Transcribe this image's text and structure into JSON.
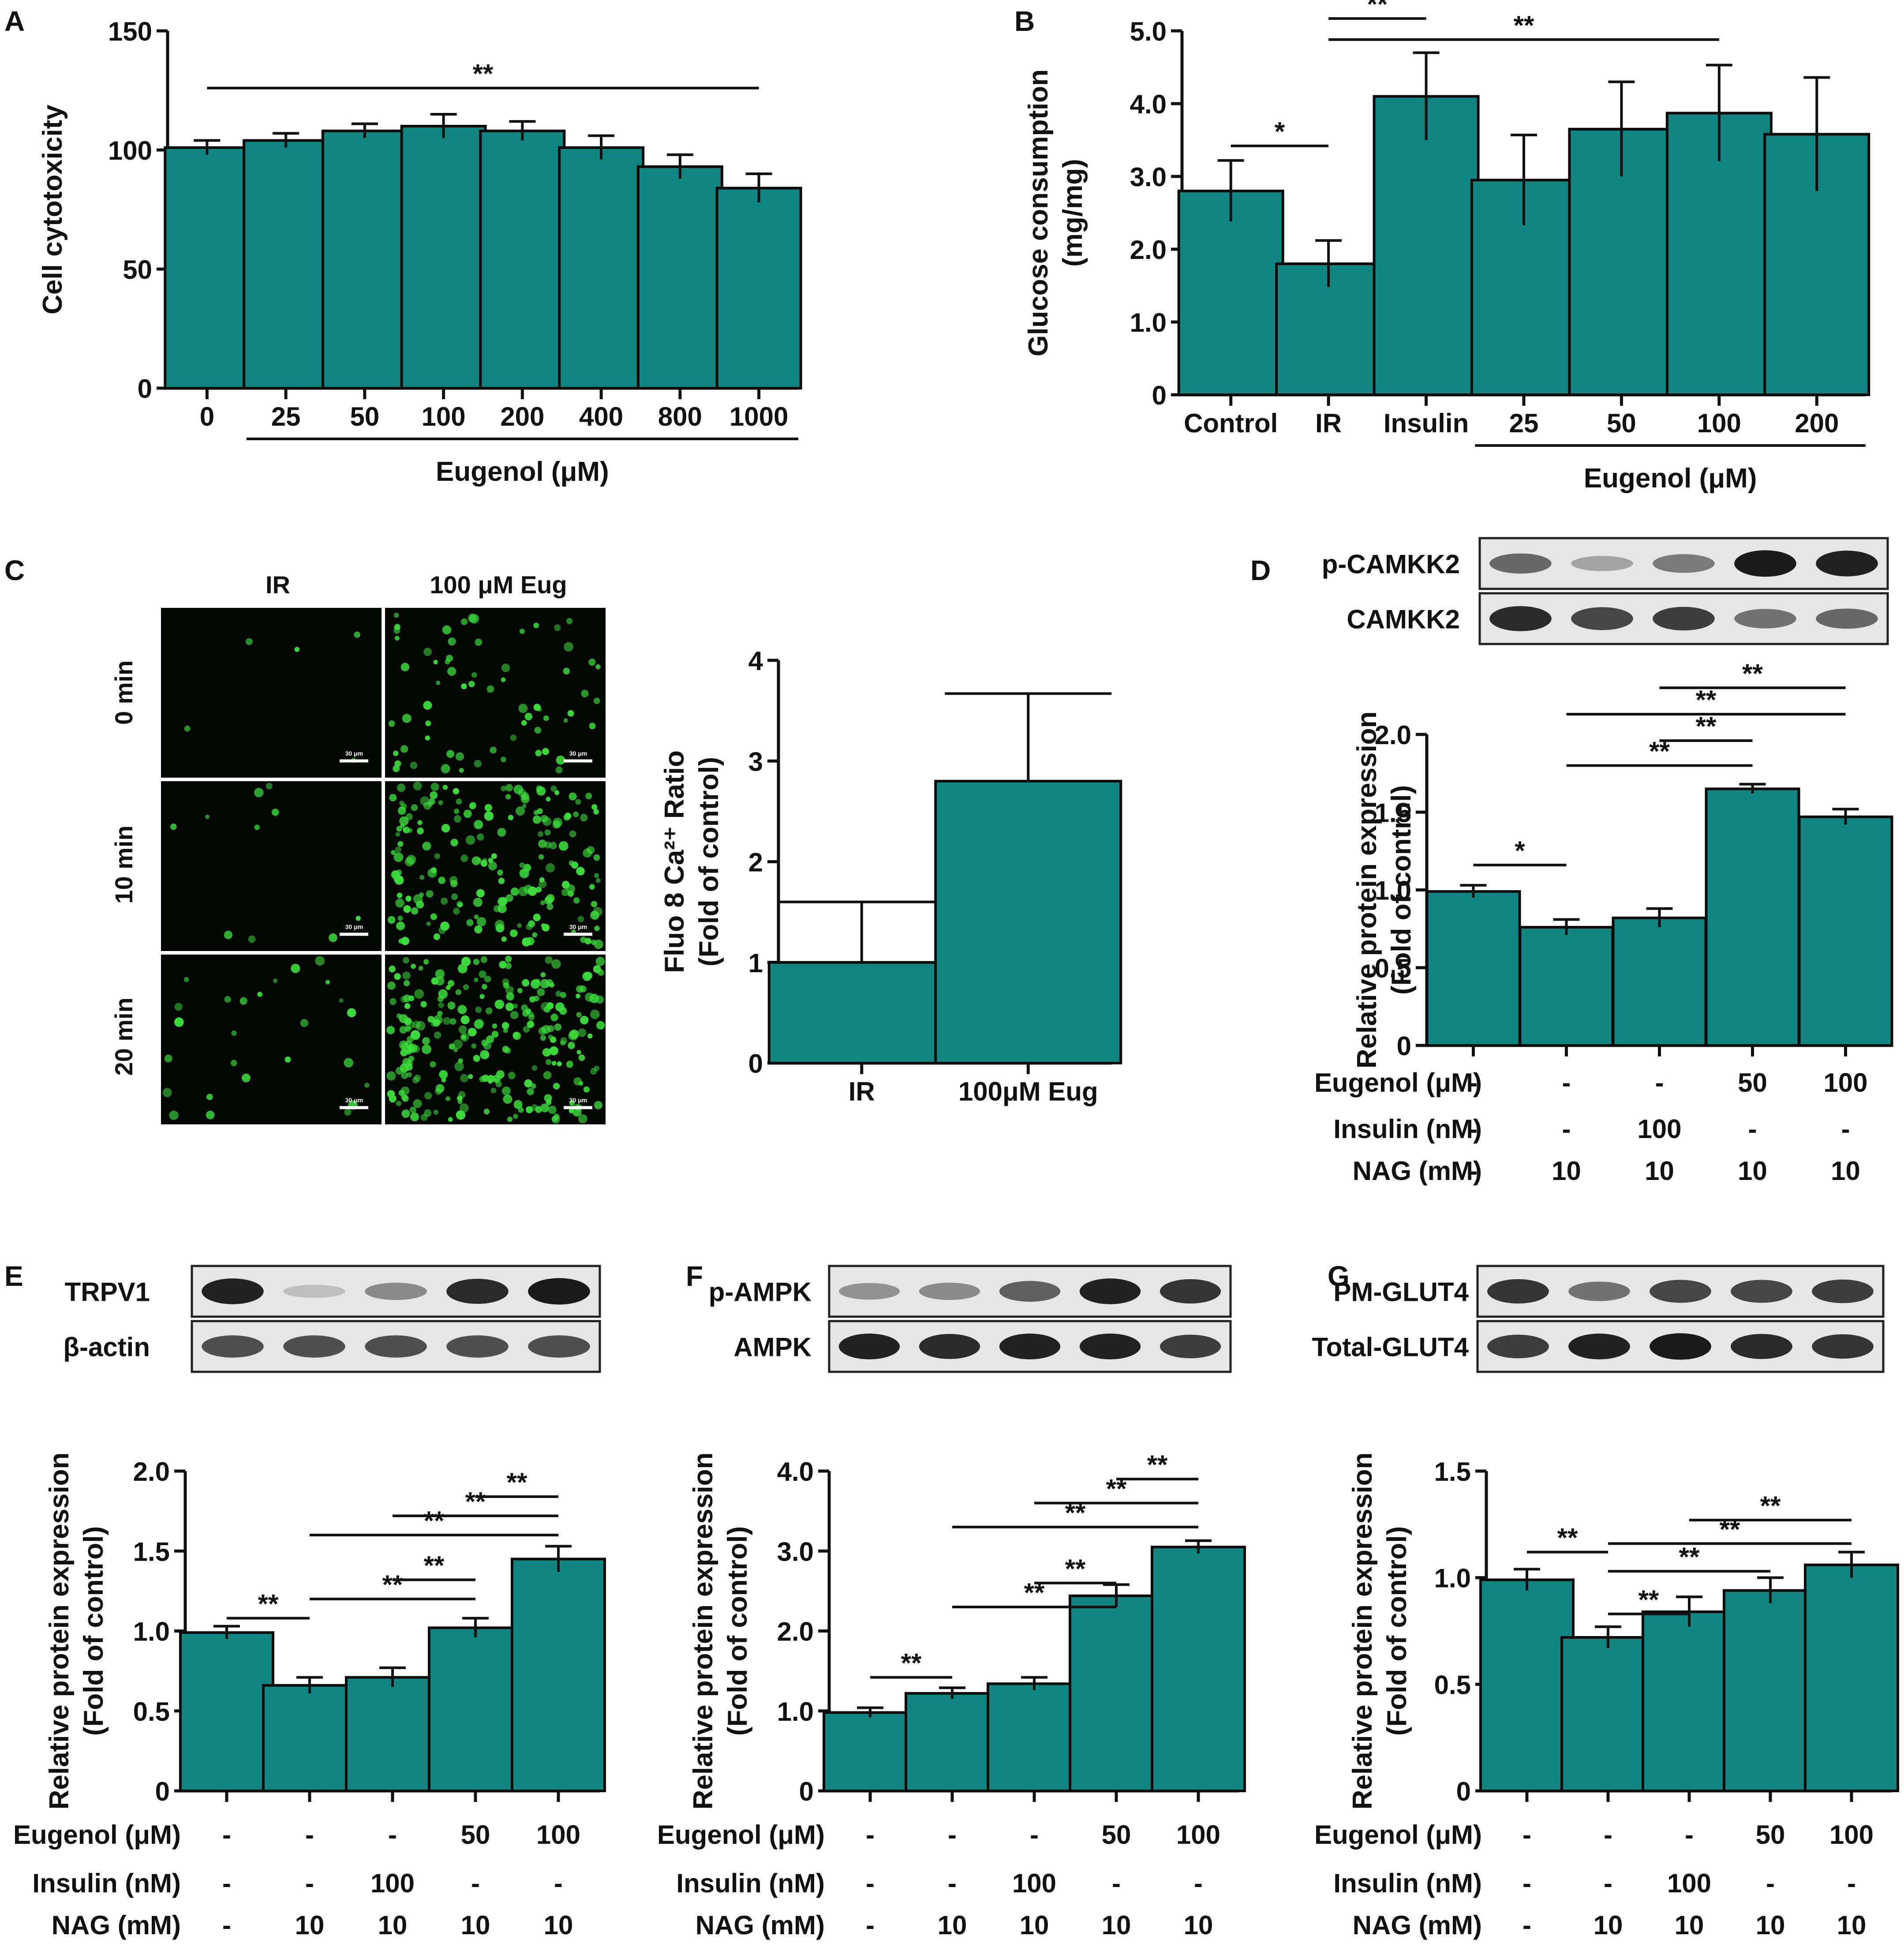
{
  "colors": {
    "bar": "#138580",
    "bar_stroke": "#0b0b0b",
    "axis": "#111111",
    "micro_bg": "#050705",
    "micro_cell": "#3ddc3d",
    "blot_bg": "#e6e6e6",
    "blot_band": "#1a1a1a"
  },
  "panels": {
    "A": "A",
    "B": "B",
    "C": "C",
    "D": "D",
    "E": "E",
    "F": "F",
    "G": "G"
  },
  "micro": {
    "col_labels": [
      "IR",
      "100 μM Eug"
    ],
    "row_labels": [
      "0 min",
      "10 min",
      "20 min"
    ],
    "scale_label": "30 μm",
    "fluorescence_level": [
      [
        0.02,
        0.25
      ],
      [
        0.04,
        0.75
      ],
      [
        0.1,
        1.0
      ]
    ]
  },
  "blots": {
    "D": [
      {
        "label": "p-CAMKK2",
        "intensity": [
          0.55,
          0.2,
          0.45,
          1.0,
          0.95
        ]
      },
      {
        "label": "CAMKK2",
        "intensity": [
          0.9,
          0.75,
          0.8,
          0.5,
          0.55
        ]
      }
    ],
    "E": [
      {
        "label": "TRPV1",
        "intensity": [
          0.95,
          0.05,
          0.35,
          0.9,
          1.0
        ]
      },
      {
        "label": "β-actin",
        "intensity": [
          0.7,
          0.7,
          0.7,
          0.7,
          0.7
        ]
      }
    ],
    "F": [
      {
        "label": "p-AMPK",
        "intensity": [
          0.3,
          0.35,
          0.6,
          0.95,
          0.85
        ]
      },
      {
        "label": "AMPK",
        "intensity": [
          0.95,
          0.9,
          0.95,
          0.95,
          0.8
        ]
      }
    ],
    "G": [
      {
        "label": "PM-GLUT4",
        "intensity": [
          0.85,
          0.5,
          0.75,
          0.75,
          0.8
        ]
      },
      {
        "label": "Total-GLUT4",
        "intensity": [
          0.8,
          0.95,
          1.0,
          0.9,
          0.85
        ]
      }
    ]
  },
  "chart_data": [
    {
      "id": "A",
      "type": "bar",
      "categories": [
        "0",
        "25",
        "50",
        "100",
        "200",
        "400",
        "800",
        "1000"
      ],
      "values": [
        101,
        104,
        108,
        110,
        108,
        101,
        93,
        84
      ],
      "errors": [
        3,
        3,
        3,
        5,
        4,
        5,
        5,
        6
      ],
      "ylabel": "Cell cytotoxicity",
      "xlabel": "Eugenol (μM)",
      "ylim": [
        0,
        150
      ],
      "yticks": [
        0,
        50,
        100,
        150
      ],
      "ytick_labels": [
        "0",
        "50",
        "100",
        "150"
      ],
      "group_bracket": {
        "from": 1,
        "to": 7,
        "label": "Eugenol (μM)"
      },
      "significance": [
        {
          "from": 0,
          "to": 7,
          "y": 126,
          "label": "**"
        }
      ]
    },
    {
      "id": "B",
      "type": "bar",
      "categories": [
        "Control",
        "IR",
        "Insulin",
        "25",
        "50",
        "100",
        "200"
      ],
      "values": [
        2.8,
        1.8,
        4.1,
        2.95,
        3.65,
        3.87,
        3.58
      ],
      "errors": [
        0.42,
        0.32,
        0.6,
        0.62,
        0.65,
        0.66,
        0.78
      ],
      "ylabel": "Glucose consumption\n(mg/mg)",
      "ylim": [
        0,
        5.0
      ],
      "yticks": [
        0,
        1,
        2,
        3,
        4,
        5
      ],
      "ytick_labels": [
        "0",
        "1.0",
        "2.0",
        "3.0",
        "4.0",
        "5.0"
      ],
      "group_bracket": {
        "from": 3,
        "to": 6,
        "label": "Eugenol (μM)"
      },
      "significance": [
        {
          "from": 0,
          "to": 1,
          "y": 3.42,
          "label": "*"
        },
        {
          "from": 1,
          "to": 2,
          "y": 5.17,
          "label": "**"
        },
        {
          "from": 1,
          "to": 5,
          "y": 4.88,
          "label": "**"
        }
      ]
    },
    {
      "id": "C",
      "type": "bar",
      "categories": [
        "IR",
        "100μM Eug"
      ],
      "values": [
        1.0,
        2.8
      ],
      "errors": [
        0.6,
        0.87
      ],
      "error_direction": "up",
      "ylabel": "Fluo 8 Ca²⁺ Ratio\n(Fold of control)",
      "ylim": [
        0,
        4
      ],
      "yticks": [
        0,
        1,
        2,
        3,
        4
      ],
      "ytick_labels": [
        "0",
        "1",
        "2",
        "3",
        "4"
      ],
      "significance": []
    },
    {
      "id": "D",
      "type": "bar",
      "categories": [
        "1",
        "2",
        "3",
        "4",
        "5"
      ],
      "values": [
        0.99,
        0.76,
        0.82,
        1.65,
        1.47
      ],
      "errors": [
        0.04,
        0.05,
        0.06,
        0.03,
        0.05
      ],
      "ylabel": "Relative protein expression\n(Fold of control)",
      "ylim": [
        0,
        2.0
      ],
      "yticks": [
        0,
        0.5,
        1.0,
        1.5,
        2.0
      ],
      "ytick_labels": [
        "0",
        "0.5",
        "1.0",
        "1.5",
        "2.0"
      ],
      "conditions": [
        {
          "label": "Eugenol (μM)",
          "values": [
            "-",
            "-",
            "-",
            "50",
            "100"
          ]
        },
        {
          "label": "Insulin (nM)",
          "values": [
            "-",
            "-",
            "100",
            "-",
            "-"
          ]
        },
        {
          "label": "NAG (mM)",
          "values": [
            "-",
            "10",
            "10",
            "10",
            "10"
          ]
        }
      ],
      "significance": [
        {
          "from": 0,
          "to": 1,
          "y": 1.16,
          "label": "*"
        },
        {
          "from": 1,
          "to": 3,
          "y": 1.8,
          "label": "**"
        },
        {
          "from": 2,
          "to": 3,
          "y": 1.96,
          "label": "**"
        },
        {
          "from": 1,
          "to": 4,
          "y": 2.13,
          "label": "**"
        },
        {
          "from": 2,
          "to": 4,
          "y": 2.3,
          "label": "**"
        }
      ]
    },
    {
      "id": "E",
      "type": "bar",
      "categories": [
        "1",
        "2",
        "3",
        "4",
        "5"
      ],
      "values": [
        0.99,
        0.66,
        0.71,
        1.02,
        1.45
      ],
      "errors": [
        0.04,
        0.05,
        0.06,
        0.06,
        0.08
      ],
      "ylabel": "Relative protein expression\n(Fold of control)",
      "ylim": [
        0,
        2.0
      ],
      "yticks": [
        0,
        0.5,
        1.0,
        1.5,
        2.0
      ],
      "ytick_labels": [
        "0",
        "0.5",
        "1.0",
        "1.5",
        "2.0"
      ],
      "conditions": [
        {
          "label": "Eugenol (μM)",
          "values": [
            "-",
            "-",
            "-",
            "50",
            "100"
          ]
        },
        {
          "label": "Insulin (nM)",
          "values": [
            "-",
            "-",
            "100",
            "-",
            "-"
          ]
        },
        {
          "label": "NAG (mM)",
          "values": [
            "-",
            "10",
            "10",
            "10",
            "10"
          ]
        }
      ],
      "significance": [
        {
          "from": 0,
          "to": 1,
          "y": 1.08,
          "label": "**"
        },
        {
          "from": 1,
          "to": 3,
          "y": 1.2,
          "label": "**"
        },
        {
          "from": 2,
          "to": 3,
          "y": 1.32,
          "label": "**"
        },
        {
          "from": 1,
          "to": 4,
          "y": 1.6,
          "label": "**"
        },
        {
          "from": 2,
          "to": 4,
          "y": 1.72,
          "label": "**"
        },
        {
          "from": 3,
          "to": 4,
          "y": 1.84,
          "label": "**"
        }
      ]
    },
    {
      "id": "F",
      "type": "bar",
      "categories": [
        "1",
        "2",
        "3",
        "4",
        "5"
      ],
      "values": [
        0.98,
        1.22,
        1.34,
        2.44,
        3.05
      ],
      "errors": [
        0.06,
        0.07,
        0.08,
        0.14,
        0.08
      ],
      "ylabel": "Relative protein expression\n(Fold of control)",
      "ylim": [
        0,
        4.0
      ],
      "yticks": [
        0,
        1,
        2,
        3,
        4
      ],
      "ytick_labels": [
        "0",
        "1.0",
        "2.0",
        "3.0",
        "4.0"
      ],
      "conditions": [
        {
          "label": "Eugenol (μM)",
          "values": [
            "-",
            "-",
            "-",
            "50",
            "100"
          ]
        },
        {
          "label": "Insulin (nM)",
          "values": [
            "-",
            "-",
            "100",
            "-",
            "-"
          ]
        },
        {
          "label": "NAG (mM)",
          "values": [
            "-",
            "10",
            "10",
            "10",
            "10"
          ]
        }
      ],
      "significance": [
        {
          "from": 0,
          "to": 1,
          "y": 1.42,
          "label": "**"
        },
        {
          "from": 1,
          "to": 3,
          "y": 2.3,
          "label": "**"
        },
        {
          "from": 2,
          "to": 3,
          "y": 2.6,
          "label": "**"
        },
        {
          "from": 1,
          "to": 4,
          "y": 3.3,
          "label": "**"
        },
        {
          "from": 2,
          "to": 4,
          "y": 3.6,
          "label": "**"
        },
        {
          "from": 3,
          "to": 4,
          "y": 3.9,
          "label": "**"
        }
      ]
    },
    {
      "id": "G",
      "type": "bar",
      "categories": [
        "1",
        "2",
        "3",
        "4",
        "5"
      ],
      "values": [
        0.99,
        0.72,
        0.84,
        0.94,
        1.06
      ],
      "errors": [
        0.05,
        0.05,
        0.07,
        0.06,
        0.06
      ],
      "ylabel": "Relative protein expression\n(Fold of control)",
      "ylim": [
        0,
        1.5
      ],
      "yticks": [
        0,
        0.5,
        1.0,
        1.5
      ],
      "ytick_labels": [
        "0",
        "0.5",
        "1.0",
        "1.5"
      ],
      "conditions": [
        {
          "label": "Eugenol (μM)",
          "values": [
            "-",
            "-",
            "-",
            "50",
            "100"
          ]
        },
        {
          "label": "Insulin (nM)",
          "values": [
            "-",
            "-",
            "100",
            "-",
            "-"
          ]
        },
        {
          "label": "NAG (mM)",
          "values": [
            "-",
            "10",
            "10",
            "10",
            "10"
          ]
        }
      ],
      "significance": [
        {
          "from": 0,
          "to": 1,
          "y": 1.12,
          "label": "**"
        },
        {
          "from": 1,
          "to": 2,
          "y": 0.83,
          "label": "**"
        },
        {
          "from": 1,
          "to": 3,
          "y": 1.03,
          "label": "**"
        },
        {
          "from": 1,
          "to": 4,
          "y": 1.16,
          "label": "**"
        },
        {
          "from": 2,
          "to": 4,
          "y": 1.27,
          "label": "**"
        }
      ]
    }
  ]
}
